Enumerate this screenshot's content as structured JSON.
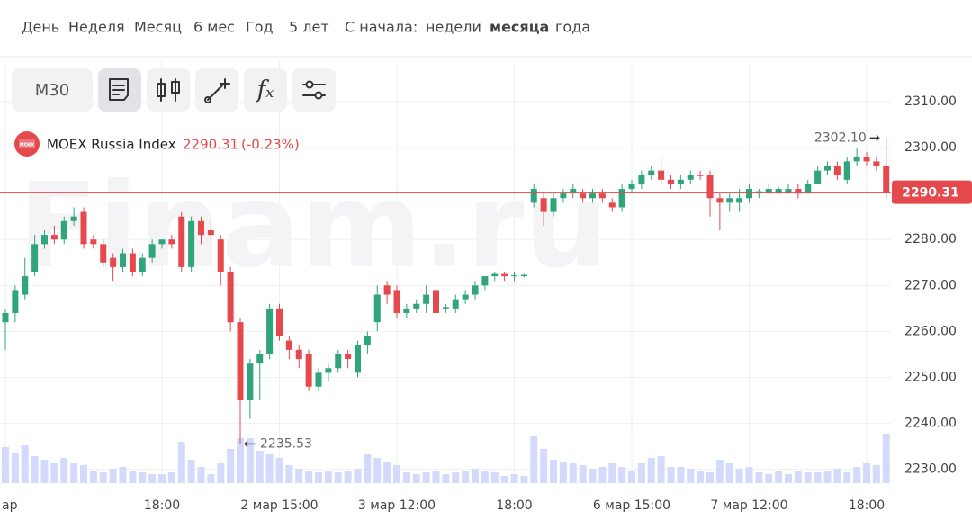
{
  "toolbar": {
    "periods": [
      "День",
      "Неделя",
      "Месяц",
      "6 мес",
      "Год",
      "5 лет"
    ],
    "since_label": "С начала:",
    "since_options": [
      "недели",
      "месяца",
      "года"
    ],
    "since_selected": 1
  },
  "interval": "M30",
  "watermark": "Finam.ru",
  "chart_data": {
    "type": "candlestick",
    "title": "MOEX Russia Index",
    "logo": "MOEX",
    "last": {
      "value": 2290.31,
      "label": "2290.31"
    },
    "change": {
      "value": -0.23,
      "label": "(-0.23%)"
    },
    "high_mark": {
      "value": 2302.1,
      "label": "2302.10"
    },
    "low_mark": {
      "value": 2235.53,
      "label": "2235.53"
    },
    "up_color": "#2fa57c",
    "down_color": "#e5484d",
    "volume_color": "#d4dafc",
    "categories": [
      "ар",
      null,
      null,
      null,
      null,
      null,
      null,
      null,
      null,
      null,
      null,
      null,
      null,
      null,
      null,
      null,
      "18:00",
      null,
      null,
      null,
      null,
      null,
      null,
      null,
      null,
      null,
      null,
      null,
      "2 мар 15:00",
      null,
      null,
      null,
      null,
      null,
      null,
      null,
      null,
      null,
      null,
      null,
      "3 мар 12:00",
      null,
      null,
      null,
      null,
      null,
      null,
      null,
      null,
      null,
      null,
      null,
      "18:00",
      null,
      null,
      null,
      null,
      null,
      null,
      null,
      null,
      null,
      null,
      null,
      "6 мар 15:00",
      null,
      null,
      null,
      null,
      null,
      null,
      null,
      null,
      null,
      null,
      null,
      "7 мар 12:00",
      null,
      null,
      null,
      null,
      null,
      null,
      null,
      null,
      null,
      null,
      null,
      "18:00",
      null,
      null
    ],
    "open": [
      2262,
      2264,
      2268,
      2273,
      2279,
      2281,
      2280,
      2284,
      2286,
      2280,
      2279,
      2276,
      2274,
      2277,
      2273,
      2276,
      2279,
      2280,
      2285,
      2274,
      2284,
      2282,
      2280,
      2273,
      2262,
      2245,
      2253,
      2255,
      2265,
      2258,
      2256,
      2255,
      2248,
      2251,
      2252,
      2255,
      2251,
      2257,
      2262,
      2270,
      2269,
      2264,
      2265,
      2266,
      2269,
      2265,
      2265,
      2267,
      2268,
      2270,
      2272,
      2272.5,
      2272,
      2272,
      2288,
      2289,
      2286,
      2289,
      2290,
      2290,
      2289,
      2290,
      2288,
      2287,
      2291,
      2292,
      2294,
      2295,
      2293,
      2292,
      2293,
      2294,
      2294,
      2289,
      2288,
      2288,
      2289,
      2290,
      2290,
      2290,
      2290,
      2291,
      2290,
      2292,
      2295,
      2296,
      2293,
      2297,
      2298,
      2297,
      2296
    ],
    "high": [
      2265,
      2270,
      2276,
      2281,
      2282,
      2283,
      2285,
      2287,
      2287,
      2281,
      2280,
      2277,
      2278,
      2278,
      2277,
      2280,
      2280,
      2281,
      2286,
      2285,
      2285,
      2284,
      2281,
      2274,
      2263,
      2254,
      2256,
      2266,
      2266,
      2259,
      2257,
      2256,
      2252,
      2253,
      2256,
      2256,
      2258,
      2260,
      2270,
      2271,
      2270,
      2266,
      2267,
      2270,
      2270,
      2266,
      2268,
      2269,
      2271,
      2272,
      2273,
      2273,
      2273,
      2272.5,
      2292,
      2290,
      2290,
      2291,
      2292,
      2291,
      2291,
      2291,
      2289,
      2292,
      2293,
      2295,
      2296,
      2298,
      2294,
      2294,
      2295,
      2295,
      2295,
      2290,
      2290,
      2291,
      2292,
      2291,
      2292,
      2291.5,
      2292,
      2292,
      2293,
      2296,
      2297,
      2297,
      2298,
      2300,
      2299,
      2298,
      2302.1
    ],
    "low": [
      2256,
      2262,
      2267,
      2272,
      2278,
      2279,
      2279,
      2283,
      2278,
      2278,
      2274,
      2271,
      2273,
      2272,
      2272,
      2275,
      2278,
      2278,
      2273,
      2273,
      2279,
      2280,
      2270,
      2260,
      2235.53,
      2241,
      2245,
      2254,
      2258,
      2254,
      2252,
      2247,
      2247,
      2249,
      2251,
      2252,
      2250,
      2255,
      2260,
      2266,
      2263,
      2263,
      2264,
      2264,
      2261,
      2264,
      2264,
      2266,
      2267,
      2269,
      2271,
      2271,
      2271,
      2271.8,
      2287,
      2283,
      2285,
      2288,
      2289,
      2288,
      2288,
      2288,
      2286,
      2286,
      2290,
      2291,
      2293,
      2292,
      2291,
      2291,
      2292,
      2293,
      2285,
      2282,
      2286,
      2286,
      2288,
      2289,
      2290,
      2290,
      2290,
      2289,
      2290,
      2292,
      2294,
      2293,
      2292,
      2296,
      2296,
      2295,
      2289
    ],
    "close": [
      2264,
      2269,
      2272,
      2279,
      2281,
      2280,
      2284,
      2285,
      2279,
      2279,
      2275,
      2274,
      2277,
      2273,
      2276,
      2279,
      2280,
      2279,
      2274,
      2284,
      2281,
      2281,
      2273,
      2262,
      2245,
      2253,
      2255,
      2265,
      2259,
      2256,
      2254,
      2248,
      2251,
      2252,
      2255,
      2254,
      2257,
      2259,
      2268,
      2268,
      2264,
      2265,
      2266,
      2268,
      2264,
      2265.3,
      2267,
      2268,
      2270,
      2272,
      2272.5,
      2272,
      2272.2,
      2272.3,
      2291,
      2286,
      2289,
      2290,
      2291,
      2289,
      2290,
      2289,
      2287,
      2291,
      2292,
      2294,
      2295,
      2293,
      2292,
      2293,
      2294,
      2293.8,
      2289,
      2288,
      2289,
      2289,
      2291,
      2290.5,
      2291,
      2291,
      2291,
      2290,
      2292,
      2295,
      2296,
      2294,
      2297,
      2298,
      2297,
      2296,
      2290.31
    ],
    "volumes": [
      40,
      34,
      42,
      30,
      26,
      22,
      28,
      22,
      20,
      14,
      12,
      16,
      18,
      14,
      12,
      10,
      10,
      12,
      46,
      26,
      18,
      10,
      22,
      38,
      50,
      50,
      36,
      32,
      28,
      20,
      16,
      14,
      12,
      14,
      12,
      14,
      16,
      32,
      28,
      24,
      20,
      12,
      10,
      12,
      14,
      10,
      12,
      14,
      16,
      14,
      12,
      8,
      10,
      8,
      52,
      38,
      26,
      24,
      22,
      20,
      16,
      18,
      22,
      18,
      14,
      22,
      28,
      30,
      18,
      18,
      16,
      14,
      12,
      26,
      22,
      16,
      18,
      12,
      10,
      14,
      10,
      14,
      12,
      12,
      14,
      16,
      12,
      18,
      22,
      20,
      55
    ],
    "ylim": [
      2227,
      2319
    ],
    "yticks": [
      {
        "value": 2230,
        "label": "2230.00"
      },
      {
        "value": 2240,
        "label": "2240.00"
      },
      {
        "value": 2250,
        "label": "2250.00"
      },
      {
        "value": 2260,
        "label": "2260.00"
      },
      {
        "value": 2270,
        "label": "2270.00"
      },
      {
        "value": 2280,
        "label": "2280.00"
      },
      {
        "value": 2290,
        "label": "2290.00"
      },
      {
        "value": 2300,
        "label": "2300.00"
      },
      {
        "value": 2310,
        "label": "2310.00"
      }
    ],
    "grid": true
  }
}
